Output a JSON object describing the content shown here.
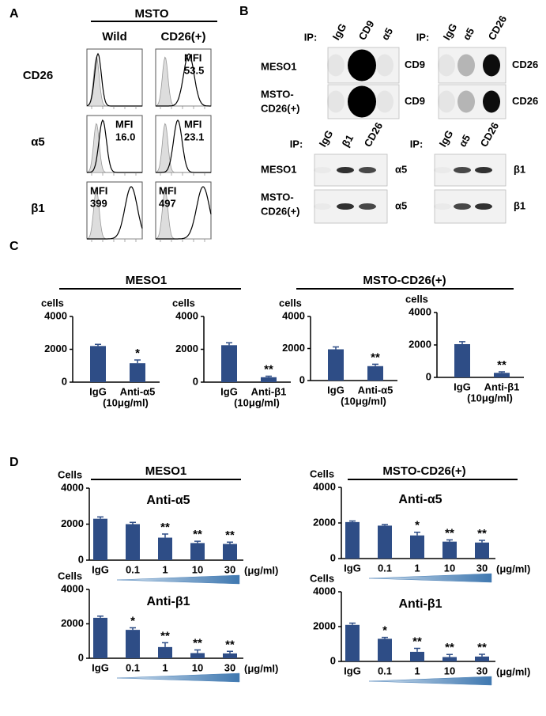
{
  "panels": {
    "A": {
      "label": "A",
      "header": "MSTO",
      "columns": [
        "Wild",
        "CD26(+)"
      ],
      "rows": [
        {
          "name": "CD26",
          "mfi": [
            null,
            {
              "label": "MFI",
              "value": "53.5"
            }
          ]
        },
        {
          "name": "α5",
          "mfi": [
            {
              "label": "MFI",
              "value": "16.0"
            },
            {
              "label": "MFI",
              "value": "23.1"
            }
          ]
        },
        {
          "name": "β1",
          "mfi": [
            {
              "label": "MFI",
              "value": "399"
            },
            {
              "label": "MFI",
              "value": "497"
            }
          ]
        }
      ]
    },
    "B": {
      "label": "B",
      "row_labels": [
        [
          "MESO1"
        ],
        [
          "MSTO-",
          "CD26(+)"
        ]
      ],
      "blots": [
        {
          "ip": "IP:",
          "lanes": [
            "IgG",
            "CD9",
            "α5"
          ],
          "bands": [
            "CD9",
            "CD9"
          ]
        },
        {
          "ip": "IP:",
          "lanes": [
            "IgG",
            "α5",
            "CD26"
          ],
          "bands": [
            "CD26",
            "CD26"
          ]
        },
        {
          "ip": "IP:",
          "lanes": [
            "IgG",
            "β1",
            "CD26"
          ],
          "bands": [
            "α5",
            "α5"
          ]
        },
        {
          "ip": "IP:",
          "lanes": [
            "IgG",
            "α5",
            "CD26"
          ],
          "bands": [
            "β1",
            "β1"
          ]
        }
      ]
    },
    "C": {
      "label": "C",
      "groups": [
        "MESO1",
        "MSTO-CD26(+)"
      ]
    },
    "D": {
      "label": "D",
      "groups": [
        "MESO1",
        "MSTO-CD26(+)"
      ]
    }
  },
  "chart_data": [
    {
      "type": "bar",
      "ylabel": "cells",
      "categories": [
        "IgG",
        "Anti-α5"
      ],
      "x_note": "(10μg/ml)",
      "values": [
        2200,
        1150
      ],
      "errors": [
        100,
        200
      ],
      "annotations": [
        null,
        "*"
      ],
      "color": "#2e4d86",
      "ylim": [
        0,
        4000
      ],
      "yticks": [
        0,
        2000,
        4000
      ]
    },
    {
      "type": "bar",
      "ylabel": "cells",
      "categories": [
        "IgG",
        "Anti-β1"
      ],
      "x_note": "(10μg/ml)",
      "values": [
        2250,
        300
      ],
      "errors": [
        150,
        60
      ],
      "annotations": [
        null,
        "**"
      ],
      "color": "#2e4d86",
      "ylim": [
        0,
        4000
      ],
      "yticks": [
        0,
        2000,
        4000
      ]
    },
    {
      "type": "bar",
      "ylabel": "cells",
      "categories": [
        "IgG",
        "Anti-α5"
      ],
      "x_note": "(10μg/ml)",
      "values": [
        1950,
        900
      ],
      "errors": [
        150,
        120
      ],
      "annotations": [
        null,
        "**"
      ],
      "color": "#2e4d86",
      "ylim": [
        0,
        4000
      ],
      "yticks": [
        0,
        2000,
        4000
      ]
    },
    {
      "type": "bar",
      "ylabel": "cells",
      "categories": [
        "IgG",
        "Anti-β1"
      ],
      "x_note": "(10μg/ml)",
      "values": [
        2050,
        280
      ],
      "errors": [
        150,
        60
      ],
      "annotations": [
        null,
        "**"
      ],
      "color": "#2e4d86",
      "ylim": [
        0,
        4000
      ],
      "yticks": [
        0,
        2000,
        4000
      ]
    },
    {
      "type": "bar",
      "title": "Anti-α5",
      "ylabel": "Cells",
      "categories": [
        "IgG",
        "0.1",
        "1",
        "10",
        "30"
      ],
      "x_unit": "(μg/ml)",
      "values": [
        2300,
        2000,
        1250,
        950,
        900
      ],
      "errors": [
        100,
        100,
        200,
        100,
        100
      ],
      "annotations": [
        null,
        null,
        "**",
        "**",
        "**"
      ],
      "color": "#2e4d86",
      "ylim": [
        0,
        4000
      ],
      "yticks": [
        0,
        2000,
        4000
      ]
    },
    {
      "type": "bar",
      "title": "Anti-α5",
      "ylabel": "Cells",
      "categories": [
        "IgG",
        "0.1",
        "1",
        "10",
        "30"
      ],
      "x_unit": "(μg/ml)",
      "values": [
        2050,
        1850,
        1300,
        950,
        900
      ],
      "errors": [
        60,
        60,
        180,
        100,
        120
      ],
      "annotations": [
        null,
        null,
        "*",
        "**",
        "**"
      ],
      "color": "#2e4d86",
      "ylim": [
        0,
        4000
      ],
      "yticks": [
        0,
        2000,
        4000
      ]
    },
    {
      "type": "bar",
      "title": "Anti-β1",
      "ylabel": "Cells",
      "categories": [
        "IgG",
        "0.1",
        "1",
        "10",
        "30"
      ],
      "x_unit": "(μg/ml)",
      "values": [
        2350,
        1650,
        650,
        300,
        280
      ],
      "errors": [
        100,
        120,
        250,
        180,
        120
      ],
      "annotations": [
        null,
        "*",
        "**",
        "**",
        "**"
      ],
      "color": "#2e4d86",
      "ylim": [
        0,
        4000
      ],
      "yticks": [
        0,
        2000,
        4000
      ]
    },
    {
      "type": "bar",
      "title": "Anti-β1",
      "ylabel": "Cells",
      "categories": [
        "IgG",
        "0.1",
        "1",
        "10",
        "30"
      ],
      "x_unit": "(μg/ml)",
      "values": [
        2100,
        1300,
        550,
        250,
        280
      ],
      "errors": [
        100,
        80,
        200,
        150,
        130
      ],
      "annotations": [
        null,
        "*",
        "**",
        "**",
        "**"
      ],
      "color": "#2e4d86",
      "ylim": [
        0,
        4000
      ],
      "yticks": [
        0,
        2000,
        4000
      ]
    }
  ]
}
